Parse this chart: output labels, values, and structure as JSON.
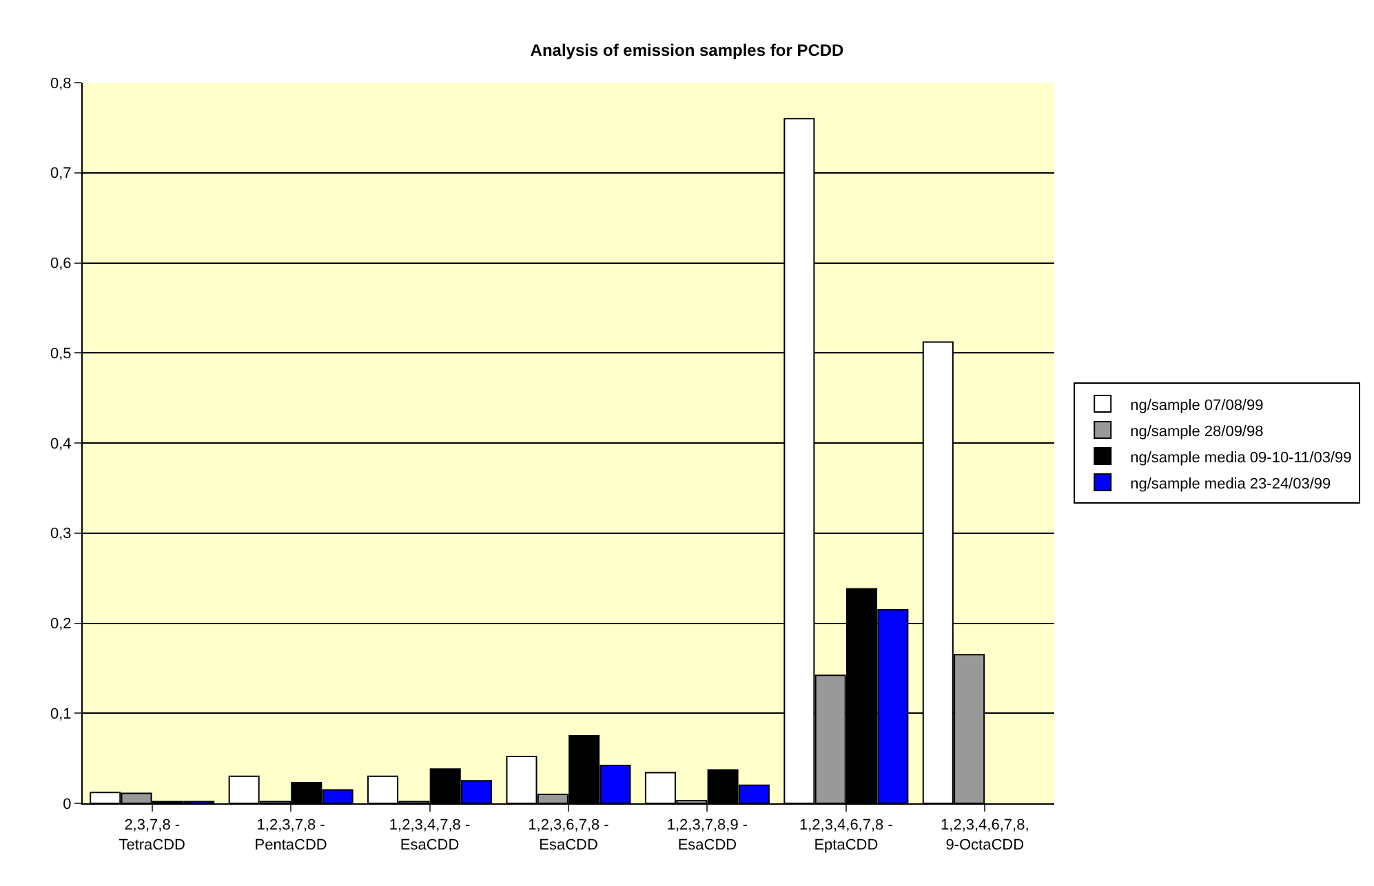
{
  "chart_data": {
    "type": "bar",
    "title": "Analysis of emission samples for PCDD",
    "categories": [
      "2,3,7,8 -\nTetraCDD",
      "1,2,3,7,8 -\nPentaCDD",
      "1,2,3,4,7,8 -\nEsaCDD",
      "1,2,3,6,7,8 -\nEsaCDD",
      "1,2,3,7,8,9 -\nEsaCDD",
      "1,2,3,4,6,7,8 -\nEptaCDD",
      "1,2,3,4,6,7,8,\n9-OctaCDD"
    ],
    "series": [
      {
        "name": "ng/sample 07/08/99",
        "color": "#ffffff",
        "values": [
          0.012,
          0.03,
          0.03,
          0.052,
          0.034,
          0.76,
          0.512
        ]
      },
      {
        "name": "ng/sample 28/09/98",
        "color": "#999999",
        "values": [
          0.011,
          0.002,
          0.002,
          0.01,
          0.003,
          0.142,
          0.165
        ]
      },
      {
        "name": "ng/sample media 09-10-11/03/99",
        "color": "#000000",
        "values": [
          0.002,
          0.023,
          0.038,
          0.075,
          0.037,
          0.238,
          null
        ]
      },
      {
        "name": "ng/sample media 23-24/03/99",
        "color": "#0000ff",
        "values": [
          0.002,
          0.015,
          0.025,
          0.042,
          0.02,
          0.215,
          null
        ]
      }
    ],
    "ylim": [
      0,
      0.8
    ],
    "yticks": [
      {
        "value": 0,
        "label": "0"
      },
      {
        "value": 0.1,
        "label": "0,1"
      },
      {
        "value": 0.2,
        "label": "0,2"
      },
      {
        "value": 0.3,
        "label": "0,3"
      },
      {
        "value": 0.4,
        "label": "0,4"
      },
      {
        "value": 0.5,
        "label": "0,5"
      },
      {
        "value": 0.6,
        "label": "0,6"
      },
      {
        "value": 0.7,
        "label": "0,7"
      },
      {
        "value": 0.8,
        "label": "0,8"
      }
    ],
    "grid": "y",
    "legend": "right"
  }
}
